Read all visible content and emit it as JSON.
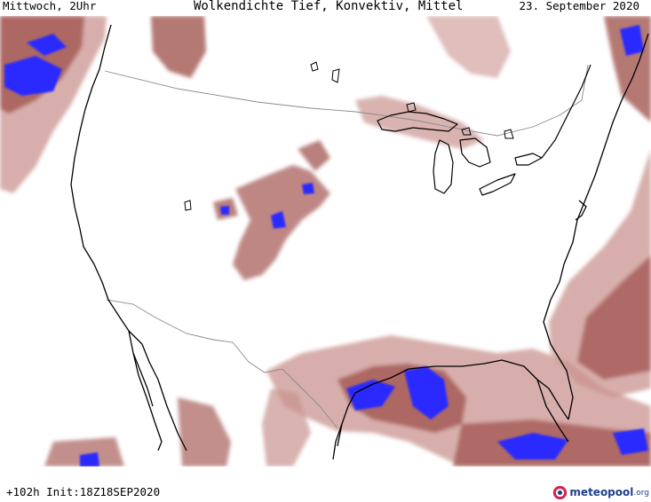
{
  "header": {
    "left": "Mittwoch, 2Uhr",
    "center": "Wolkendichte  Tief, Konvektiv, Mittel",
    "right": "23. September 2020"
  },
  "footer": {
    "run_info": "+102h Init:18Z18SEP2020",
    "brand_name": "meteopool",
    "brand_tld": ".org"
  },
  "map": {
    "region": "continental United States, northern Mexico, Gulf of Mexico",
    "colors": {
      "cloud_density": "#a8605c",
      "cloud_light": "#c9938f",
      "cloud_dense": "#2b2bff",
      "coastline": "#000000",
      "borders": "#8a8a8a",
      "background": "#ffffff"
    },
    "brand_icon": "meteopool-logo-icon"
  }
}
